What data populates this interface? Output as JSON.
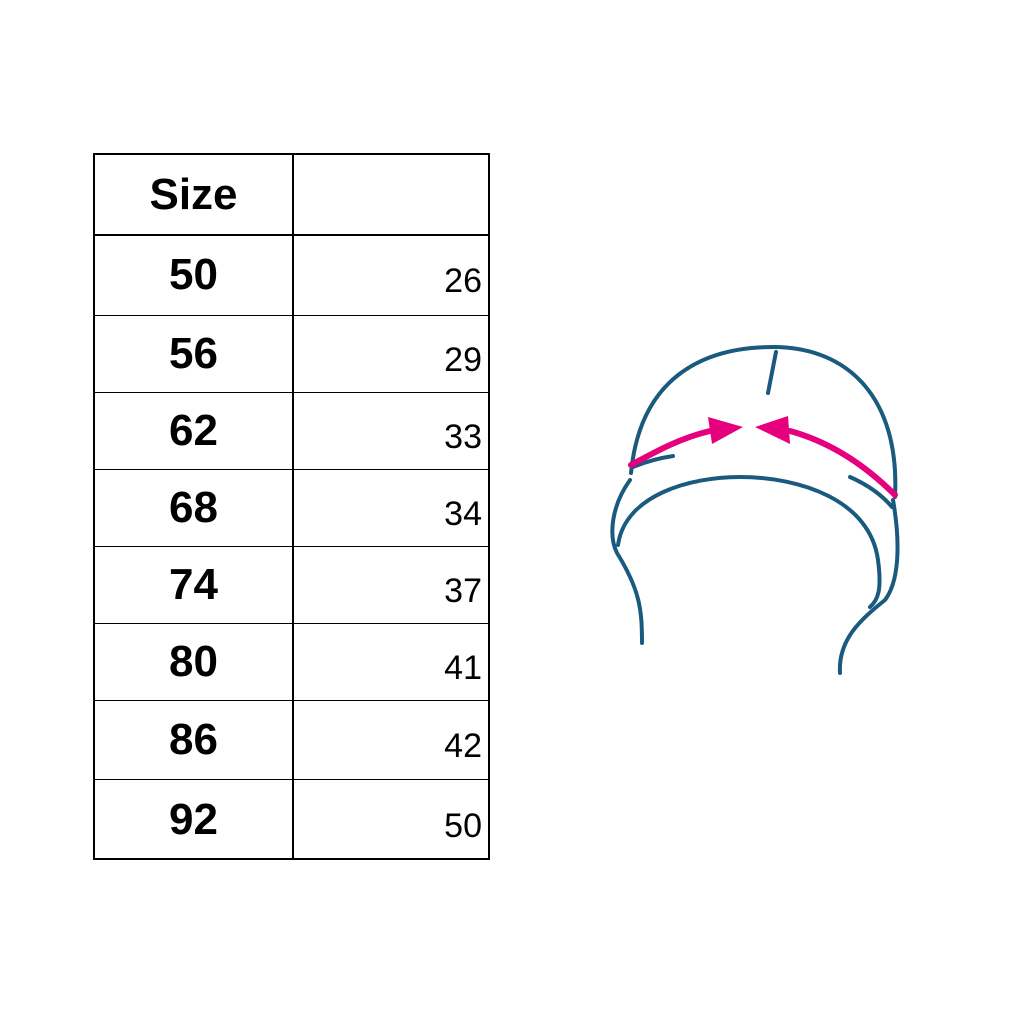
{
  "table": {
    "headers": [
      "Size",
      ""
    ],
    "rows": [
      {
        "size": "50",
        "value": "26"
      },
      {
        "size": "56",
        "value": "29"
      },
      {
        "size": "62",
        "value": "33"
      },
      {
        "size": "68",
        "value": "34"
      },
      {
        "size": "74",
        "value": "37"
      },
      {
        "size": "80",
        "value": "41"
      },
      {
        "size": "86",
        "value": "42"
      },
      {
        "size": "92",
        "value": "50"
      }
    ]
  },
  "diagram": {
    "icon": "hat-head-circumference-icon",
    "line_color": "#1a5a7e",
    "arrow_color": "#e6007e"
  }
}
